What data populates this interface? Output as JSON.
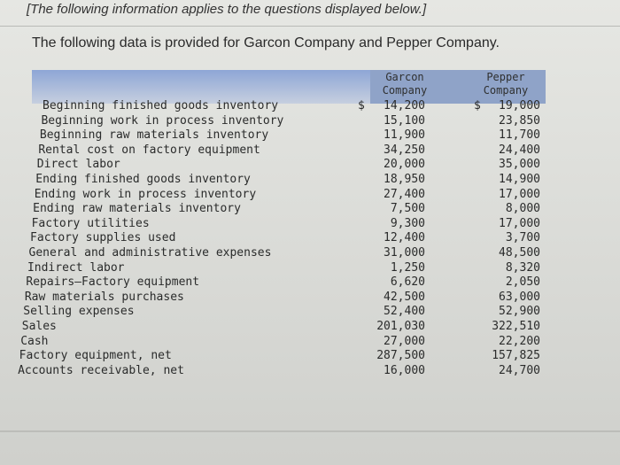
{
  "intro": "[The following information applies to the questions displayed below.]",
  "heading": "The following data is provided for Garcon Company and Pepper Company.",
  "columns": {
    "garcon": [
      "Garcon",
      "Company"
    ],
    "pepper": [
      "Pepper",
      "Company"
    ]
  },
  "currency_symbol": "$",
  "rows": [
    {
      "label": "Beginning finished goods inventory",
      "garcon": "14,200",
      "pepper": "19,000"
    },
    {
      "label": "Beginning work in process inventory",
      "garcon": "15,100",
      "pepper": "23,850"
    },
    {
      "label": "Beginning raw materials inventory",
      "garcon": "11,900",
      "pepper": "11,700"
    },
    {
      "label": "Rental cost on factory equipment",
      "garcon": "34,250",
      "pepper": "24,400"
    },
    {
      "label": "Direct labor",
      "garcon": "20,000",
      "pepper": "35,000"
    },
    {
      "label": "Ending finished goods inventory",
      "garcon": "18,950",
      "pepper": "14,900"
    },
    {
      "label": "Ending work in process inventory",
      "garcon": "27,400",
      "pepper": "17,000"
    },
    {
      "label": "Ending raw materials inventory",
      "garcon": "7,500",
      "pepper": "8,000"
    },
    {
      "label": "Factory utilities",
      "garcon": "9,300",
      "pepper": "17,000"
    },
    {
      "label": "Factory supplies used",
      "garcon": "12,400",
      "pepper": "3,700"
    },
    {
      "label": "General and administrative expenses",
      "garcon": "31,000",
      "pepper": "48,500"
    },
    {
      "label": "Indirect labor",
      "garcon": "1,250",
      "pepper": "8,320"
    },
    {
      "label": "Repairs—Factory equipment",
      "garcon": "6,620",
      "pepper": "2,050"
    },
    {
      "label": "Raw materials purchases",
      "garcon": "42,500",
      "pepper": "63,000"
    },
    {
      "label": "Selling expenses",
      "garcon": "52,400",
      "pepper": "52,900"
    },
    {
      "label": "Sales",
      "garcon": "201,030",
      "pepper": "322,510"
    },
    {
      "label": "Cash",
      "garcon": "27,000",
      "pepper": "22,200"
    },
    {
      "label": "Factory equipment, net",
      "garcon": "287,500",
      "pepper": "157,825"
    },
    {
      "label": "Accounts receivable, net",
      "garcon": "16,000",
      "pepper": "24,700"
    }
  ]
}
